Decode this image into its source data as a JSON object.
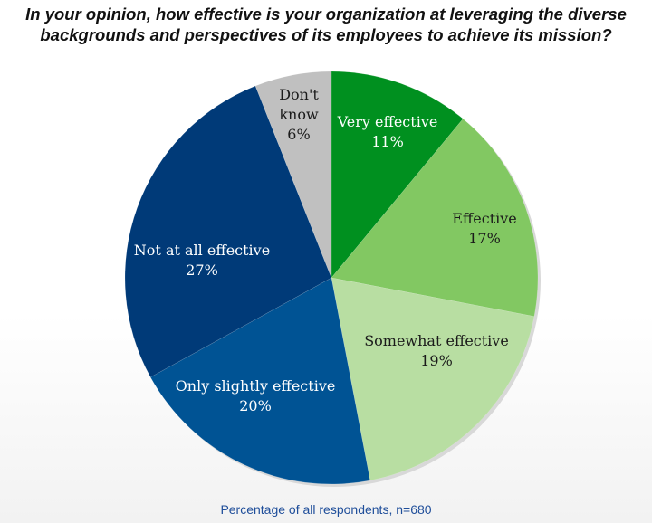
{
  "chart_data": {
    "type": "pie",
    "title": "In your opinion, how effective is your organization at leveraging the diverse backgrounds and perspectives of its employees to achieve its mission?",
    "footnote": "Percentage of all respondents, n=680",
    "slices": [
      {
        "label": "Very effective",
        "value": 11,
        "value_label": "11%",
        "color": "#00901f",
        "text_color": "#ffffff"
      },
      {
        "label": "Effective",
        "value": 17,
        "value_label": "17%",
        "color": "#82c862",
        "text_color": "#1a1a1a"
      },
      {
        "label": "Somewhat effective",
        "value": 19,
        "value_label": "19%",
        "color": "#b8dea2",
        "text_color": "#1a1a1a"
      },
      {
        "label": "Only slightly effective",
        "value": 20,
        "value_label": "20%",
        "color": "#005394",
        "text_color": "#ffffff"
      },
      {
        "label": "Not at all effective",
        "value": 27,
        "value_label": "27%",
        "color": "#003a78",
        "text_color": "#ffffff"
      },
      {
        "label": "Don't know",
        "value": 6,
        "value_label": "6%",
        "color": "#c0c0c0",
        "text_color": "#1a1a1a"
      }
    ],
    "start_angle": "12 o'clock",
    "direction": "clockwise"
  }
}
